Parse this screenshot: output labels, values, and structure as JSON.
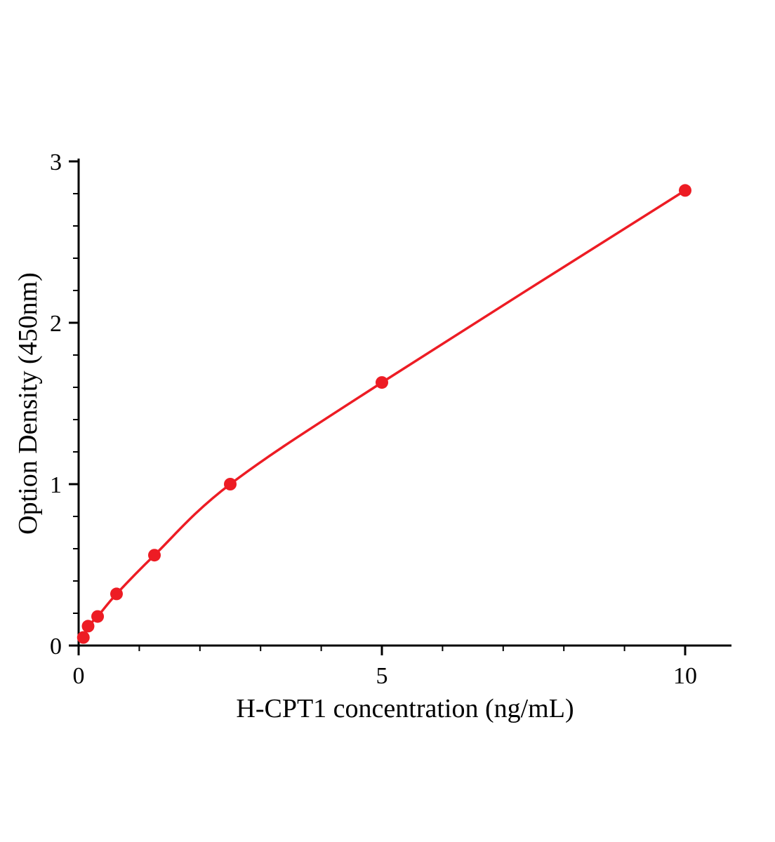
{
  "chart_data": {
    "type": "scatter",
    "title": "",
    "xlabel": "H-CPT1 concentration (ng/mL)",
    "ylabel": "Option Density (450nm)",
    "x": [
      0.078,
      0.156,
      0.313,
      0.625,
      1.25,
      2.5,
      5,
      10
    ],
    "y": [
      0.05,
      0.12,
      0.18,
      0.32,
      0.56,
      1.0,
      1.63,
      2.82
    ],
    "xlim": [
      0,
      10.8
    ],
    "ylim": [
      0,
      3
    ],
    "x_major_ticks": [
      0,
      5,
      10
    ],
    "x_minor_step": 1,
    "y_major_ticks": [
      0,
      1,
      2,
      3
    ],
    "y_minor_step": 0.2,
    "line_color": "#ed1c24",
    "marker_color": "#ed1c24",
    "axis_color": "#000000",
    "grid": false,
    "legend_position": "none",
    "curve_style": "smooth"
  }
}
